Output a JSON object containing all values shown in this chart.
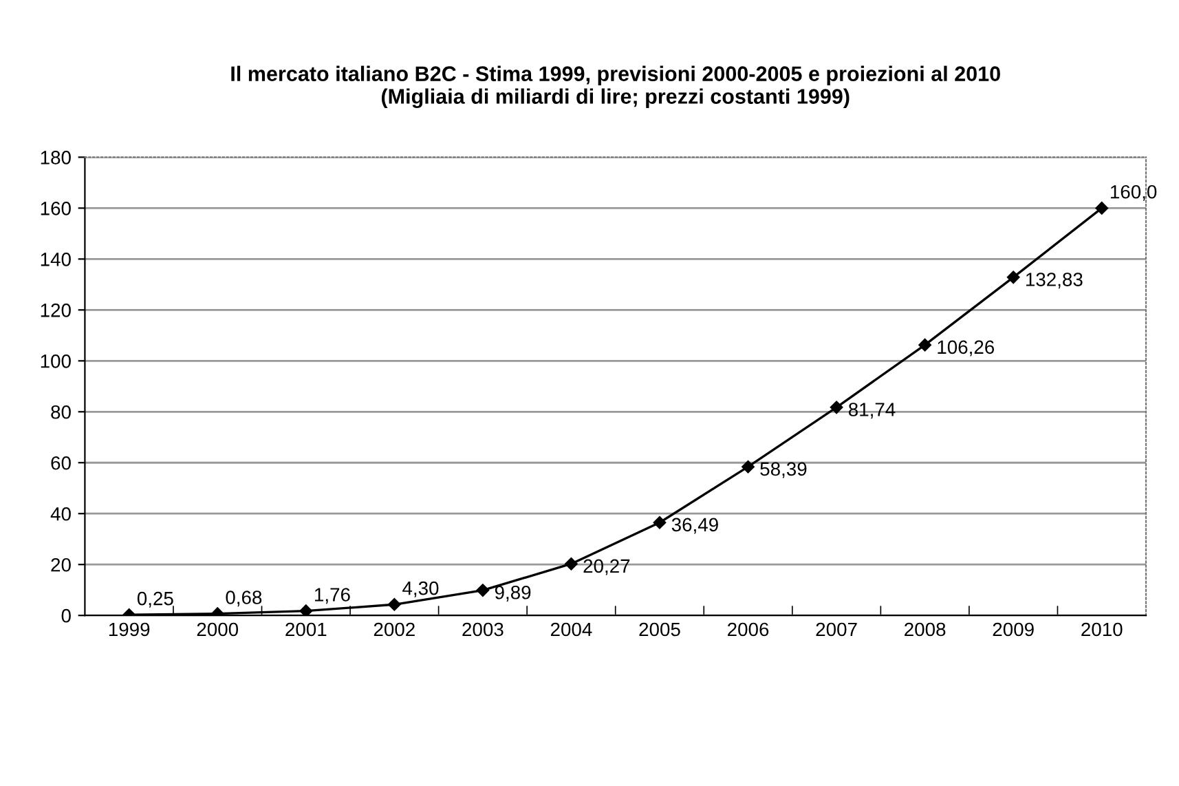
{
  "chart_data": {
    "type": "line",
    "title": "Il mercato italiano B2C - Stima 1999, previsioni 2000-2005 e proiezioni al 2010\n(Migliaia di miliardi di lire; prezzi costanti 1999)",
    "categories": [
      "1999",
      "2000",
      "2001",
      "2002",
      "2003",
      "2004",
      "2005",
      "2006",
      "2007",
      "2008",
      "2009",
      "2010"
    ],
    "series": [
      {
        "color": "#000000",
        "values": [
          0.25,
          0.68,
          1.76,
          4.3,
          9.89,
          20.27,
          36.49,
          58.39,
          81.74,
          106.26,
          132.83,
          160.0
        ]
      }
    ],
    "value_labels": [
      "0,25",
      "0,68",
      "1,76",
      "4,30",
      "9,89",
      "20,27",
      "36,49",
      "58,39",
      "81,74",
      "106,26",
      "132,83",
      "160,0"
    ],
    "ylim": [
      0,
      180
    ],
    "yticks": [
      0,
      20,
      40,
      60,
      80,
      100,
      120,
      140,
      160,
      180
    ],
    "grid": "y",
    "marker": "diamond",
    "line_style": "solid",
    "legend": false
  }
}
